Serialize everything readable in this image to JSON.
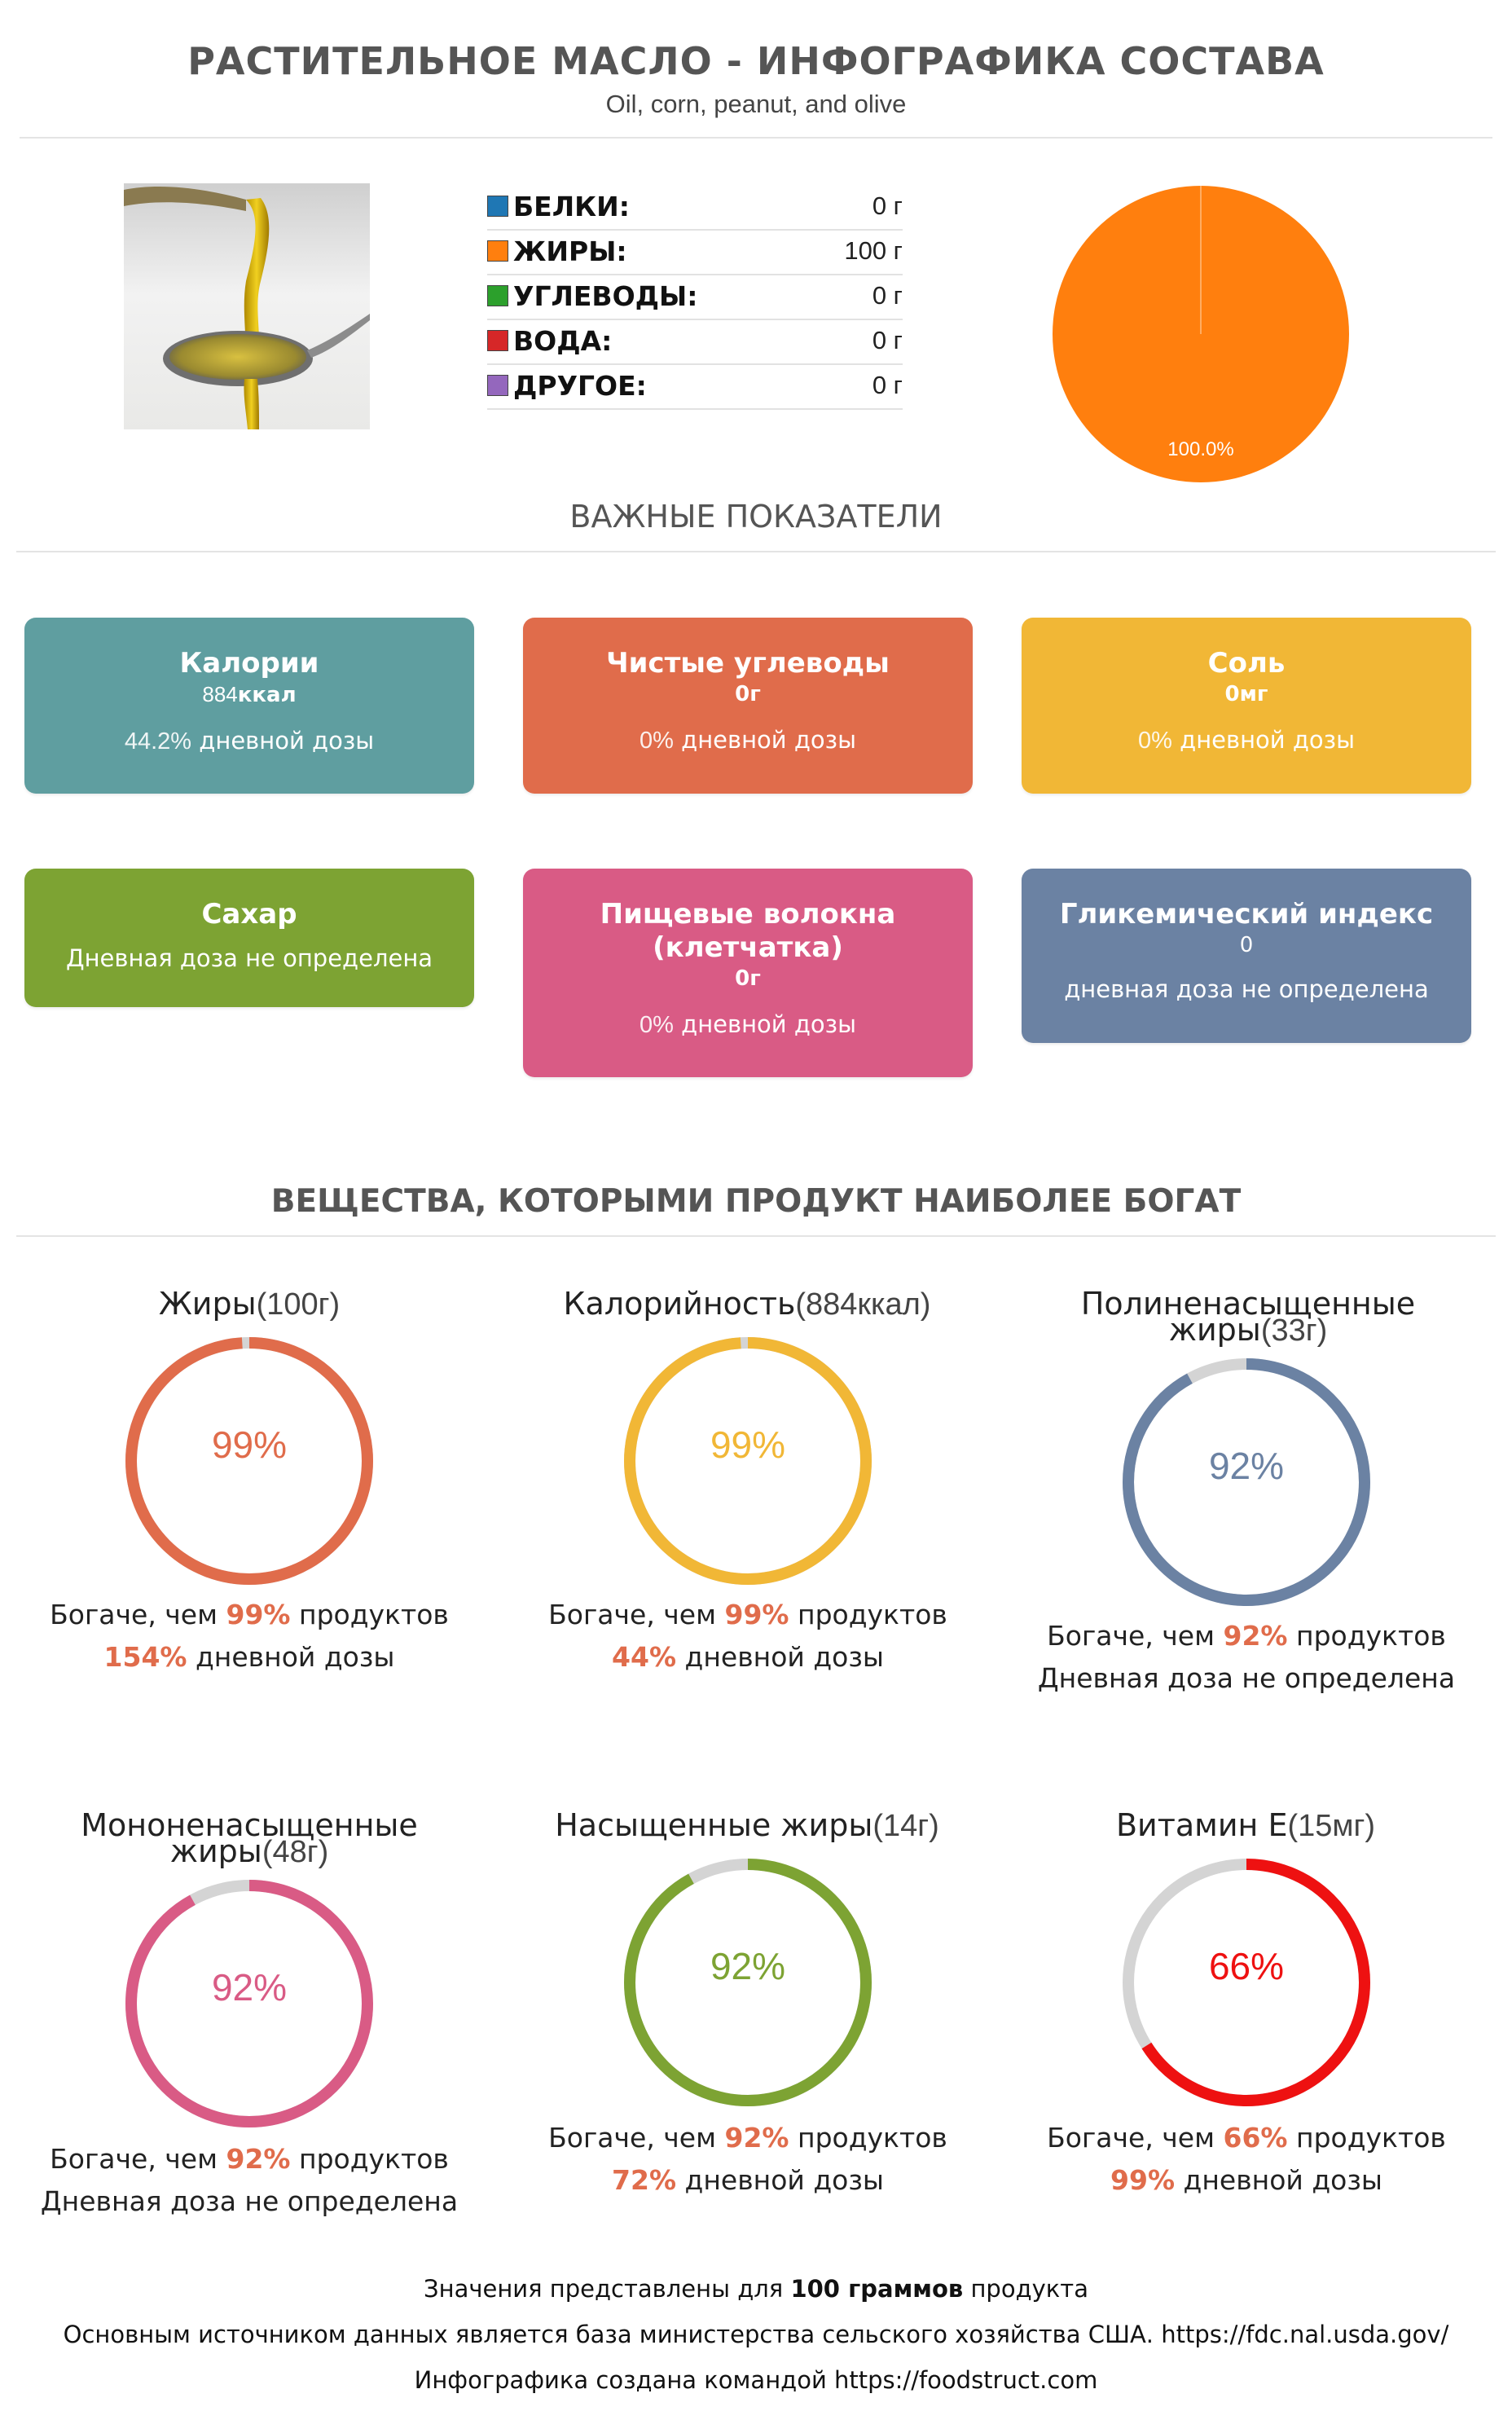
{
  "header": {
    "title": "РАСТИТЕЛЬНОЕ МАСЛО - ИНФОГРАФИКА СОСТАВА",
    "subtitle": "Oil, corn, peanut, and olive"
  },
  "macros": [
    {
      "label": "БЕЛКИ",
      "value": "0 г",
      "color": "#1f77b4"
    },
    {
      "label": "ЖИРЫ",
      "value": "100 г",
      "color": "#ff7f0e"
    },
    {
      "label": "УГЛЕВОДЫ",
      "value": "0 г",
      "color": "#2ca02c"
    },
    {
      "label": "ВОДА",
      "value": "0 г",
      "color": "#d62728"
    },
    {
      "label": "ДРУГОЕ",
      "value": "0 г",
      "color": "#9467bd"
    }
  ],
  "chart_data": {
    "type": "pie",
    "categories": [
      "БЕЛКИ",
      "ЖИРЫ",
      "УГЛЕВОДЫ",
      "ВОДА",
      "ДРУГОЕ"
    ],
    "values": [
      0,
      100,
      0,
      0,
      0
    ],
    "colors": [
      "#1f77b4",
      "#ff7f0e",
      "#2ca02c",
      "#d62728",
      "#9467bd"
    ],
    "labels": [
      "",
      "100.0%",
      "",
      "",
      ""
    ]
  },
  "indicators": {
    "title": "ВАЖНЫЕ ПОКАЗАТЕЛИ",
    "cards": [
      {
        "title": "Калории",
        "value_num": "884",
        "value_unit": "ккал",
        "dv_pct": "44.2%",
        "dv_text": " дневной дозы",
        "color": "#5f9ea0"
      },
      {
        "title": "Чистые углеводы",
        "value_num": "0",
        "value_unit": "г",
        "dv_pct": "0%",
        "dv_text": " дневной дозы",
        "color": "#e06c4b"
      },
      {
        "title": "Соль",
        "value_num": "0",
        "value_unit": "мг",
        "dv_pct": "0%",
        "dv_text": " дневной дозы",
        "color": "#f1b736"
      },
      {
        "title": "Сахар",
        "dv_text": "Дневная доза не определена",
        "color": "#7da333"
      },
      {
        "title_line1": "Пищевые волокна",
        "title_line2": "(клетчатка)",
        "value_num": "0",
        "value_unit": "г",
        "dv_pct": "0%",
        "dv_text": " дневной дозы",
        "color": "#d95b85"
      },
      {
        "title": "Гликемический индекс",
        "value_num": "0",
        "dv_text": "дневная доза не определена",
        "color": "#6b82a3"
      }
    ]
  },
  "nutrients": {
    "title": "ВЕЩЕСТВА, КОТОРЫМИ ПРОДУКТ НАИБОЛЕЕ БОГАТ",
    "richer_prefix": "Богаче, чем ",
    "richer_suffix": " продуктов",
    "dv_suffix": " дневной дозы",
    "items": [
      {
        "name": "Жиры",
        "amount": "(100г)",
        "percent": 99,
        "percent_label": "99%",
        "dv": "154%",
        "color": "#e06c4b"
      },
      {
        "name": "Калорийность",
        "amount": "(884ккал)",
        "percent": 99,
        "percent_label": "99%",
        "dv": "44%",
        "color": "#f1b736"
      },
      {
        "name_line1": "Полиненасыщенные",
        "name_line2": "жиры",
        "amount": "(33г)",
        "percent": 92,
        "percent_label": "92%",
        "dv_none": "Дневная доза не определена",
        "color": "#6b82a3"
      },
      {
        "name_line1": "Мононенасыщенные",
        "name_line2": "жиры",
        "amount": "(48г)",
        "percent": 92,
        "percent_label": "92%",
        "dv_none": "Дневная доза не определена",
        "color": "#d95b85"
      },
      {
        "name": "Насыщенные жиры",
        "amount": "(14г)",
        "percent": 92,
        "percent_label": "92%",
        "dv": "72%",
        "color": "#7da333"
      },
      {
        "name": "Витамин E",
        "amount": "(15мг)",
        "percent": 66,
        "percent_label": "66%",
        "dv": "99%",
        "color": "#ee1111"
      }
    ]
  },
  "footer": {
    "line1_a": "Значения представлены для ",
    "line1_b": "100 граммов",
    "line1_c": " продукта",
    "line2": "Основным источником данных является база министерства сельского хозяйства США. https://fdc.nal.usda.gov/",
    "line3": "Инфографика создана командой https://foodstruct.com"
  }
}
